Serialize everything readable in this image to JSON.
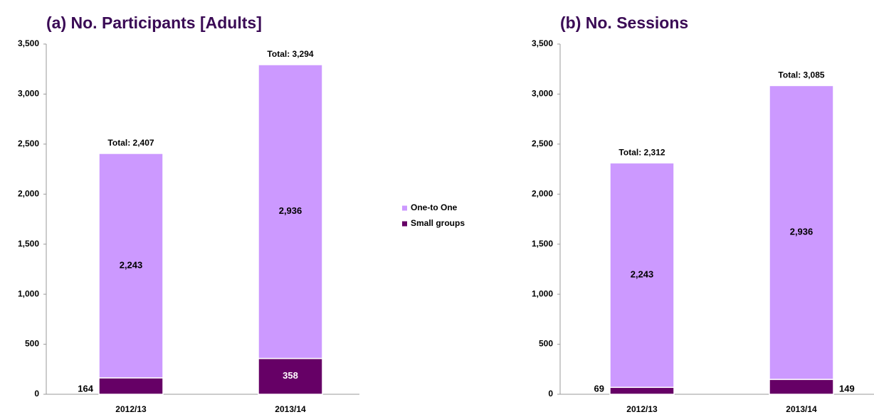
{
  "chart_data": [
    {
      "type": "stacked_bar",
      "title": "(a) No. Participants [Adults]",
      "categories": [
        "2012/13",
        "2013/14"
      ],
      "series": [
        {
          "name": "Small groups",
          "color": "#660066",
          "values": [
            164,
            358
          ],
          "value_labels": [
            "164",
            "358"
          ]
        },
        {
          "name": "One-to One",
          "color": "#cc99ff",
          "values": [
            2243,
            2936
          ],
          "value_labels": [
            "2,243",
            "2,936"
          ]
        }
      ],
      "total_labels": [
        "Total: 2,407",
        "Total: 3,294"
      ],
      "ylim": [
        0,
        3500
      ],
      "yticks": [
        0,
        500,
        {
          "value": 1000,
          "label": "1,000"
        },
        {
          "value": 1500,
          "label": "1,500"
        },
        {
          "value": 2000,
          "label": "2,000"
        },
        {
          "value": 2500,
          "label": "2,500"
        },
        {
          "value": 3000,
          "label": "3,000"
        },
        {
          "value": 3500,
          "label": "3,500"
        }
      ],
      "grid": false,
      "legend": "right"
    },
    {
      "type": "stacked_bar",
      "title": "(b) No. Sessions",
      "categories": [
        "2012/13",
        "2013/14"
      ],
      "series": [
        {
          "name": "Small groups",
          "color": "#660066",
          "values": [
            69,
            149
          ],
          "value_labels": [
            "69",
            "149"
          ]
        },
        {
          "name": "One-to One",
          "color": "#cc99ff",
          "values": [
            2243,
            2936
          ],
          "value_labels": [
            "2,243",
            "2,936"
          ]
        }
      ],
      "total_labels": [
        "Total: 2,312",
        "Total: 3,085"
      ],
      "ylim": [
        0,
        3500
      ],
      "yticks": [
        0,
        500,
        {
          "value": 1000,
          "label": "1,000"
        },
        {
          "value": 1500,
          "label": "1,500"
        },
        {
          "value": 2000,
          "label": "2,000"
        },
        {
          "value": 2500,
          "label": "2,500"
        },
        {
          "value": 3000,
          "label": "3,000"
        },
        {
          "value": 3500,
          "label": "3,500"
        }
      ],
      "grid": false
    }
  ]
}
